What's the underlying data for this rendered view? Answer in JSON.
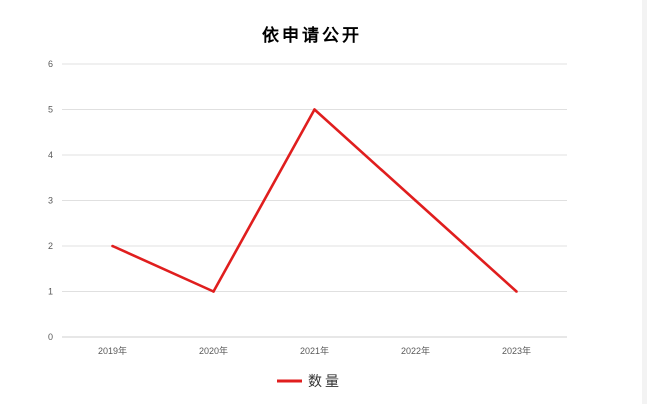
{
  "chart_data": {
    "type": "line",
    "title": "依申请公开",
    "categories": [
      "2019年",
      "2020年",
      "2021年",
      "2022年",
      "2023年"
    ],
    "series": [
      {
        "name": "数量",
        "values": [
          2,
          1,
          5,
          3,
          1
        ],
        "color": "#e01e1e"
      }
    ],
    "ylim": [
      0,
      6
    ],
    "yticks": [
      0,
      1,
      2,
      3,
      4,
      5,
      6
    ],
    "grid": true,
    "legend_position": "bottom",
    "xlabel": "",
    "ylabel": ""
  }
}
